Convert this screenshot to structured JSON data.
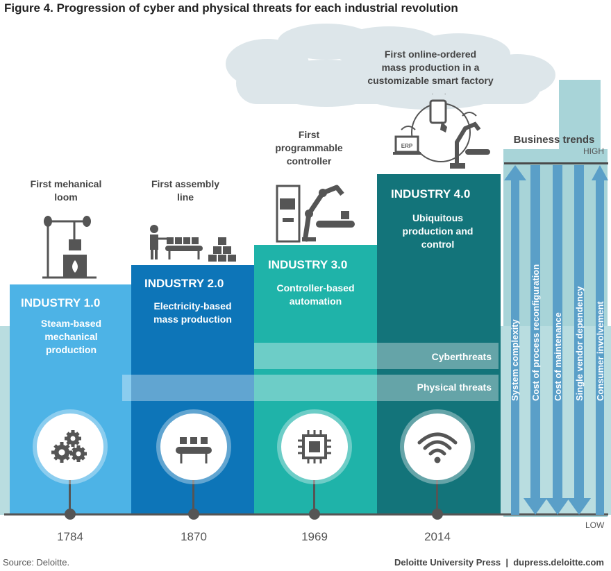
{
  "title": "Figure 4. Progression of cyber and physical threats for each industrial revolution",
  "captions": {
    "loom": [
      "First mehanical",
      "loom"
    ],
    "assembly": [
      "First assembly",
      "line"
    ],
    "controller": [
      "First",
      "programmable",
      "controller"
    ],
    "smart": [
      "First online-ordered",
      "mass production in a",
      "customizable smart factory"
    ]
  },
  "industries": [
    {
      "title": "INDUSTRY 1.0",
      "desc": [
        "Steam-based",
        "mechanical",
        "production"
      ],
      "year": "1784",
      "icon": "gears-icon",
      "color": "#4db3e6"
    },
    {
      "title": "INDUSTRY 2.0",
      "desc": [
        "Electricity-based",
        "mass production"
      ],
      "year": "1870",
      "icon": "conveyor-icon",
      "color": "#0d75b8"
    },
    {
      "title": "INDUSTRY 3.0",
      "desc": [
        "Controller-based",
        "automation"
      ],
      "year": "1969",
      "icon": "chip-icon",
      "color": "#1fb3a9"
    },
    {
      "title": "INDUSTRY 4.0",
      "desc": [
        "Ubiquitous",
        "production and",
        "control"
      ],
      "year": "2014",
      "icon": "wifi-icon",
      "color": "#13747a"
    }
  ],
  "threats": {
    "cyber": "Cyberthreats",
    "physical": "Physical threats"
  },
  "business_trends": {
    "title": "Business trends",
    "high": "HIGH",
    "low": "LOW",
    "items": [
      {
        "label": "System complexity",
        "direction": "up"
      },
      {
        "label": "Cost of process reconfiguration",
        "direction": "down"
      },
      {
        "label": "Cost of maintenance",
        "direction": "down"
      },
      {
        "label": "Single vendor dependency",
        "direction": "down"
      },
      {
        "label": "Consumer involvement",
        "direction": "up"
      }
    ]
  },
  "footer": {
    "source": "Source: Deloitte.",
    "credit": "Deloitte University Press  |  dupress.deloitte.com"
  },
  "colors": {
    "background_teal": "#b9dde0",
    "smokestack": "#a8d4d8",
    "cloud": "#dde6ea",
    "trend_arrow": "#5a9fc8",
    "timeline": "#555555"
  }
}
